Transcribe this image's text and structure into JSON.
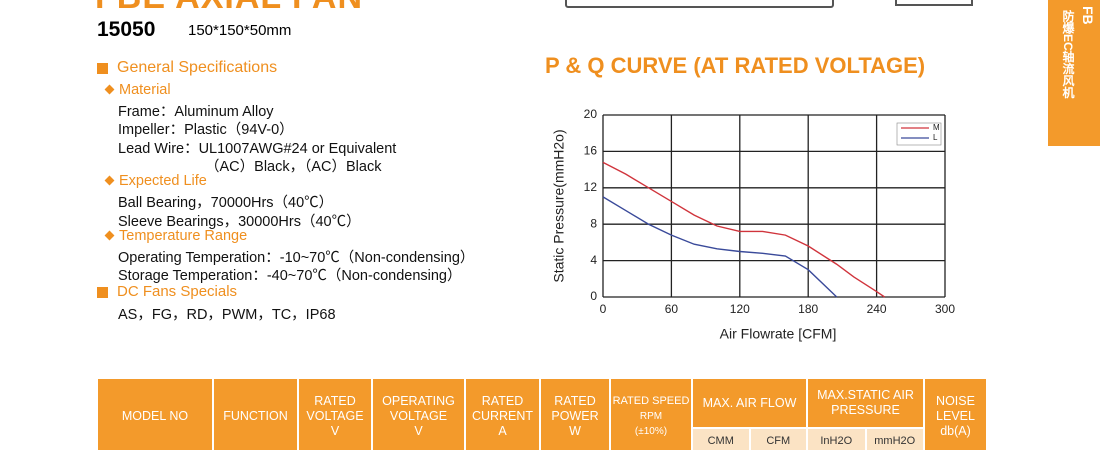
{
  "header": {
    "title": "FBE AXIAL FAN",
    "model": "15050",
    "size": "150*150*50mm"
  },
  "side_tab": {
    "label": "防爆EC轴流风机",
    "code": "FB"
  },
  "specs": {
    "heading": "General Specifications",
    "groups": [
      {
        "title": "Material",
        "lines": [
          "Frame：Aluminum Alloy",
          "Impeller：Plastic（94V-0）",
          "Lead Wire：UL1007AWG#24 or Equivalent",
          "（AC）Black，（AC）Black"
        ]
      },
      {
        "title": "Expected Life",
        "lines": [
          "Ball Bearing，70000Hrs（40℃）",
          "Sleeve Bearings，30000Hrs（40℃）"
        ]
      },
      {
        "title": "Temperature Range",
        "lines": [
          "Operating Temperation：-10~70℃（Non-condensing）",
          "Storage Temperation：-40~70℃（Non-condensing）"
        ]
      }
    ],
    "specials_heading": "DC Fans Specials",
    "specials": "AS，FG，RD，PWM，TC，IP68"
  },
  "chart_data": {
    "type": "line",
    "title": "P & Q CURVE (AT RATED VOLTAGE)",
    "x_label": "Air  Flowrate  [CFM]",
    "y_label": "Static Pressure(mmH2o)",
    "x": [
      0,
      20,
      40,
      60,
      80,
      100,
      120,
      140,
      160,
      180,
      200,
      205,
      220,
      240,
      247
    ],
    "series": [
      {
        "name": "M",
        "color": "#d0343c",
        "values": [
          14.8,
          13.5,
          12,
          10.5,
          9,
          7.8,
          7.2,
          7.2,
          6.8,
          5.6,
          4,
          3.6,
          2.2,
          0.6,
          0
        ]
      },
      {
        "name": "L",
        "color": "#3a4a9a",
        "values": [
          11,
          9.5,
          8,
          6.8,
          5.8,
          5.3,
          5,
          4.8,
          4.5,
          3,
          0.6,
          0,
          null,
          null,
          null
        ]
      }
    ],
    "xlim": [
      0,
      300
    ],
    "xticks": [
      0,
      60,
      120,
      180,
      240,
      300
    ],
    "ylim": [
      0,
      20
    ],
    "yticks": [
      0,
      4,
      8,
      12,
      16,
      20
    ],
    "grid": true,
    "legend": "top-right"
  },
  "table": {
    "headers": [
      {
        "lines": [
          "MODEL NO"
        ]
      },
      {
        "lines": [
          "FUNCTION"
        ]
      },
      {
        "lines": [
          "RATED",
          "VOLTAGE",
          "V"
        ]
      },
      {
        "lines": [
          "OPERATING",
          "VOLTAGE",
          "V"
        ]
      },
      {
        "lines": [
          "RATED",
          "CURRENT",
          "A"
        ]
      },
      {
        "lines": [
          "RATED",
          "POWER",
          "W"
        ]
      },
      {
        "lines": [
          "RATED SPEED",
          "RPM",
          "(±10%)"
        ]
      },
      {
        "lines": [
          "MAX. AIR FLOW"
        ],
        "sub": [
          "CMM",
          "CFM"
        ]
      },
      {
        "lines": [
          "MAX.STATIC AIR",
          "PRESSURE"
        ],
        "sub": [
          "InH2O",
          "mmH2O"
        ]
      },
      {
        "lines": [
          "NOISE",
          "LEVEL",
          "db(A)"
        ]
      }
    ]
  }
}
